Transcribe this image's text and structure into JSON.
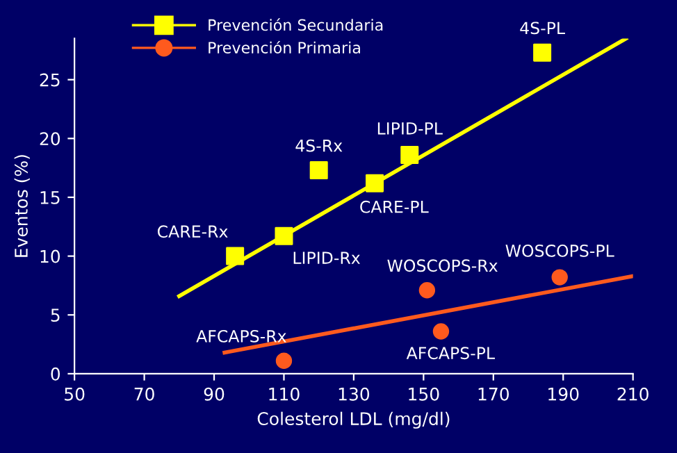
{
  "chart_data": {
    "type": "scatter",
    "xlabel": "Colesterol LDL (mg/dl)",
    "ylabel": "Eventos (%)",
    "xlim": [
      50,
      210
    ],
    "ylim": [
      0,
      28.5
    ],
    "xticks": [
      50,
      70,
      90,
      110,
      130,
      150,
      170,
      190,
      210
    ],
    "yticks": [
      0,
      5,
      10,
      15,
      20,
      25
    ],
    "grid": false,
    "legend": "top left",
    "series": [
      {
        "name": "Prevención Secundaria",
        "marker": "square",
        "color": "#ffff00",
        "x": [
          96,
          110,
          120,
          136,
          146,
          184
        ],
        "values": [
          10,
          11.7,
          17.3,
          16.2,
          18.6,
          27.3
        ]
      },
      {
        "name": "Prevención Primaria",
        "marker": "circle",
        "color": "#ff5a1e",
        "x": [
          110,
          151,
          155,
          189
        ],
        "values": [
          1.1,
          7.1,
          3.6,
          8.2
        ]
      },
      {
        "type": "line",
        "color": "#ffff00",
        "x": [
          80,
          208
        ],
        "values": [
          6.6,
          28.5
        ]
      },
      {
        "type": "line",
        "color": "#ff5a1e",
        "x": [
          93,
          210
        ],
        "values": [
          1.8,
          8.3
        ]
      }
    ],
    "annotations": [
      {
        "text": "CARE-Rx",
        "x": 96,
        "y": 10
      },
      {
        "text": "LIPID-Rx",
        "x": 110,
        "y": 11.7
      },
      {
        "text": "4S-Rx",
        "x": 120,
        "y": 17.3
      },
      {
        "text": "CARE-PL",
        "x": 136,
        "y": 16.2
      },
      {
        "text": "LIPID-PL",
        "x": 146,
        "y": 18.6
      },
      {
        "text": "4S-PL",
        "x": 184,
        "y": 27.3
      },
      {
        "text": "AFCAPS-Rx",
        "x": 110,
        "y": 1.1
      },
      {
        "text": "WOSCOPS-Rx",
        "x": 151,
        "y": 7.1
      },
      {
        "text": "AFCAPS-PL",
        "x": 155,
        "y": 3.6
      },
      {
        "text": "WOSCOPS-PL",
        "x": 189,
        "y": 8.2
      }
    ]
  }
}
